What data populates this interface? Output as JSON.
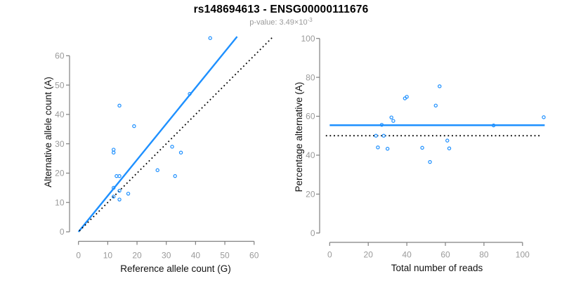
{
  "header": {
    "title": "rs148694613 - ENSG00000111676",
    "subtitle_prefix": "p-value: 3.49×10",
    "subtitle_exponent": "-3"
  },
  "colors": {
    "accent": "#1E90FF",
    "reference_line": "#000000",
    "axis": "#808080",
    "tick_label": "#9a9a9a",
    "title_text": "#000000",
    "subtitle_text": "#9a9a9a",
    "axis_title_text": "#111111"
  },
  "chart_data": [
    {
      "panel": "left",
      "type": "scatter",
      "xlabel": "Reference allele count (G)",
      "ylabel": "Alternative allele count (A)",
      "xticks": [
        0,
        10,
        20,
        30,
        40,
        50,
        60
      ],
      "yticks": [
        0,
        10,
        20,
        30,
        40,
        50,
        60
      ],
      "xlim": [
        0,
        66
      ],
      "ylim": [
        0,
        67
      ],
      "grid": "off",
      "points": [
        [
          12,
          12
        ],
        [
          12,
          15
        ],
        [
          12,
          27
        ],
        [
          12,
          28
        ],
        [
          13,
          19
        ],
        [
          14,
          11
        ],
        [
          14,
          14
        ],
        [
          14,
          19
        ],
        [
          14,
          43
        ],
        [
          17,
          13
        ],
        [
          19,
          36
        ],
        [
          27,
          21
        ],
        [
          32,
          29
        ],
        [
          33,
          19
        ],
        [
          35,
          27
        ],
        [
          38,
          47
        ],
        [
          45,
          66
        ]
      ],
      "lines": [
        {
          "name": "fit-line",
          "style": "solid",
          "color_key": "accent",
          "points": [
            [
              0,
              0
            ],
            [
              54.2,
              66.5
            ]
          ]
        },
        {
          "name": "identity-line",
          "style": "dotted",
          "color_key": "reference_line",
          "points": [
            [
              0.3,
              0.3
            ],
            [
              66.2,
              66.2
            ]
          ]
        }
      ]
    },
    {
      "panel": "right",
      "type": "scatter",
      "xlabel": "Total number of reads",
      "ylabel": "Percentage alternative (A)",
      "xticks": [
        0,
        20,
        40,
        60,
        80,
        100
      ],
      "yticks": [
        0,
        20,
        40,
        60,
        80,
        100
      ],
      "xlim": [
        0,
        115
      ],
      "ylim": [
        0,
        100
      ],
      "grid": "off",
      "points": [
        [
          24,
          50.0
        ],
        [
          25,
          44.0
        ],
        [
          27,
          55.6
        ],
        [
          28,
          50.0
        ],
        [
          30,
          43.3
        ],
        [
          32,
          59.4
        ],
        [
          33,
          57.6
        ],
        [
          39,
          69.2
        ],
        [
          40,
          70.0
        ],
        [
          48,
          43.8
        ],
        [
          52,
          36.5
        ],
        [
          55,
          65.5
        ],
        [
          57,
          75.4
        ],
        [
          61,
          47.5
        ],
        [
          62,
          43.5
        ],
        [
          85,
          55.3
        ],
        [
          111,
          59.5
        ]
      ],
      "lines": [
        {
          "name": "mean-line",
          "style": "solid",
          "color_key": "accent",
          "points": [
            [
              0,
              55.4
            ],
            [
              111.5,
              55.4
            ]
          ]
        },
        {
          "name": "reference-line",
          "style": "dotted",
          "color_key": "reference_line",
          "points": [
            [
              -2,
              50
            ],
            [
              110,
              50
            ]
          ]
        }
      ]
    }
  ]
}
